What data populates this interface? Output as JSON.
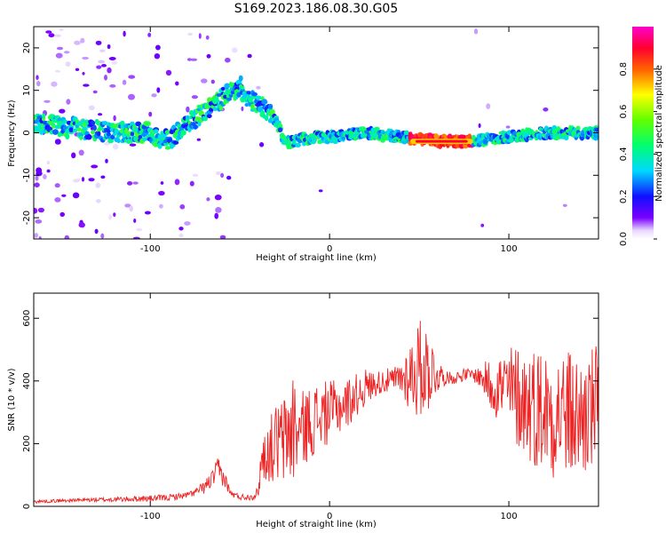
{
  "title": "S169.2023.186.08.30.G05",
  "colors": {
    "snr_line": "#ee2222",
    "frame": "#000000"
  },
  "chart_data": [
    {
      "type": "heatmap",
      "xlabel": "Height of straight line (km)",
      "ylabel": "Frequency (Hz)",
      "xlim": [
        -165,
        150
      ],
      "ylim": [
        -25,
        25
      ],
      "xticks": [
        -100,
        0,
        100
      ],
      "yticks": [
        -20,
        -10,
        0,
        10,
        20
      ],
      "colorbar": {
        "label": "Normalized spectral amplitude",
        "range": [
          0,
          1
        ],
        "ticks": [
          0.0,
          0.2,
          0.4,
          0.6,
          0.8
        ],
        "tick_labels": [
          "0.0",
          "0.2",
          "0.4",
          "0.6",
          "0.8"
        ],
        "colormap": "rainbow (white-violet-blue-cyan-green-yellow-red-magenta)"
      },
      "ridge": {
        "x": [
          -160,
          -140,
          -120,
          -100,
          -90,
          -80,
          -70,
          -60,
          -50,
          -45,
          -40,
          -35,
          -30,
          -25,
          -20,
          -10,
          0,
          20,
          40,
          60,
          80,
          100,
          120,
          140,
          150
        ],
        "y": [
          2,
          1,
          0,
          0,
          -2,
          2,
          5,
          8,
          11,
          8,
          7,
          5,
          3,
          -2,
          -2,
          -1,
          -1,
          0,
          -1,
          -2,
          -2,
          -1,
          0,
          0,
          0
        ],
        "peak_amplitude_segment": [
          45,
          80
        ]
      }
    },
    {
      "type": "line",
      "xlabel": "Height of straight line (km)",
      "ylabel": "SNR (10 * v/v)",
      "xlim": [
        -165,
        150
      ],
      "ylim": [
        0,
        680
      ],
      "xticks": [
        -100,
        0,
        100
      ],
      "yticks": [
        0,
        200,
        400,
        600
      ],
      "series": [
        {
          "x": [
            -165,
            -140,
            -120,
            -100,
            -90,
            -80,
            -75,
            -70,
            -65,
            -62,
            -58,
            -55,
            -50,
            -45,
            -40,
            -38,
            -35,
            -30,
            -25,
            -20,
            -18,
            -15,
            -10,
            -5,
            0,
            10,
            20,
            25,
            30,
            35,
            40,
            45,
            48,
            50,
            55,
            60,
            65,
            70,
            75,
            80,
            85,
            90,
            95,
            100,
            105,
            110,
            115,
            120,
            125,
            130,
            135,
            140,
            145,
            150
          ],
          "y": [
            15,
            20,
            22,
            25,
            28,
            35,
            45,
            60,
            90,
            120,
            80,
            40,
            30,
            30,
            40,
            150,
            170,
            200,
            210,
            260,
            230,
            250,
            270,
            290,
            300,
            330,
            380,
            390,
            400,
            400,
            410,
            420,
            430,
            440,
            440,
            420,
            410,
            410,
            420,
            420,
            410,
            390,
            380,
            370,
            350,
            330,
            320,
            310,
            300,
            300,
            290,
            280,
            300,
            320
          ],
          "noise_amplitude": [
            5,
            6,
            8,
            10,
            10,
            10,
            12,
            20,
            30,
            40,
            25,
            10,
            10,
            10,
            20,
            70,
            90,
            130,
            150,
            200,
            120,
            120,
            120,
            110,
            100,
            80,
            60,
            40,
            40,
            40,
            60,
            120,
            150,
            160,
            140,
            60,
            20,
            20,
            20,
            20,
            40,
            90,
            120,
            150,
            170,
            180,
            200,
            200,
            210,
            210,
            210,
            200,
            210,
            200
          ]
        }
      ]
    }
  ]
}
